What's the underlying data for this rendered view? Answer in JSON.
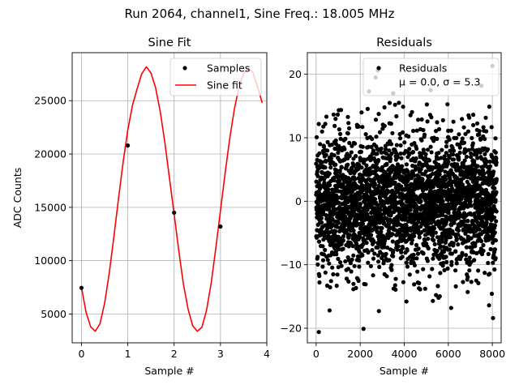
{
  "figure": {
    "suptitle": "Run 2064, channel1, Sine Freq.: 18.005 MHz"
  },
  "chart_data": [
    {
      "type": "line",
      "title": "Sine Fit",
      "xlabel": "Sample #",
      "ylabel": "ADC Counts",
      "xlim": [
        -0.2,
        4.0
      ],
      "ylim": [
        2300,
        29500
      ],
      "xticks": [
        0,
        1,
        2,
        3,
        4
      ],
      "yticks": [
        5000,
        10000,
        15000,
        20000,
        25000
      ],
      "grid": true,
      "legend_position": "top-right",
      "series": [
        {
          "name": "Samples",
          "kind": "scatter",
          "color": "#000000",
          "x": [
            0,
            1,
            2,
            3
          ],
          "y": [
            7450,
            20800,
            14500,
            13200
          ]
        },
        {
          "name": "Sine fit",
          "kind": "line",
          "color": "#ff0000",
          "x": [
            0.0,
            0.1,
            0.2,
            0.3,
            0.4,
            0.5,
            0.6,
            0.7,
            0.8,
            0.9,
            1.0,
            1.1,
            1.2,
            1.3,
            1.4,
            1.5,
            1.6,
            1.7,
            1.8,
            1.9,
            2.0,
            2.1,
            2.2,
            2.3,
            2.4,
            2.5,
            2.6,
            2.7,
            2.8,
            2.9,
            3.0,
            3.1,
            3.2,
            3.3,
            3.4,
            3.5,
            3.6,
            3.7,
            3.8,
            3.9
          ],
          "y": [
            7512,
            5152,
            3796,
            3393,
            4092,
            6006,
            8836,
            12245,
            15830,
            19251,
            22245,
            24543,
            26089,
            27503,
            28177,
            27600,
            26215,
            23985,
            21082,
            17716,
            14400,
            10950,
            7809,
            5483,
            3904,
            3385,
            3760,
            5356,
            7912,
            11193,
            14700,
            18199,
            21448,
            24212,
            26273,
            27532,
            28047,
            27648,
            26310,
            24800
          ]
        }
      ]
    },
    {
      "type": "scatter",
      "title": "Residuals",
      "xlabel": "Sample #",
      "ylabel": "",
      "xlim": [
        -400,
        8400
      ],
      "ylim": [
        -22.3,
        23.4
      ],
      "xticks": [
        0,
        2000,
        4000,
        6000,
        8000
      ],
      "yticks": [
        -20,
        -10,
        0,
        10,
        20
      ],
      "grid": true,
      "legend_position": "top-right",
      "series": [
        {
          "name": "Residuals",
          "color": "#000000",
          "n_points": 8192,
          "mean": 0.0,
          "std": 5.3,
          "outliers": [
            {
              "x": 120,
              "y": -20.6
            },
            {
              "x": 2150,
              "y": -20.1
            },
            {
              "x": 8000,
              "y": 21.3
            },
            {
              "x": 8030,
              "y": -18.4
            },
            {
              "x": 2800,
              "y": 20.6
            },
            {
              "x": 2700,
              "y": 19.5
            },
            {
              "x": 2400,
              "y": 17.3
            },
            {
              "x": 5200,
              "y": 17.5
            },
            {
              "x": 7500,
              "y": 18.2
            },
            {
              "x": 3500,
              "y": 17.0
            },
            {
              "x": 610,
              "y": -17.2
            },
            {
              "x": 2850,
              "y": -17.3
            },
            {
              "x": 6130,
              "y": -16.8
            },
            {
              "x": 7850,
              "y": -16.4
            },
            {
              "x": 4100,
              "y": -15.8
            },
            {
              "x": 5300,
              "y": -15.7
            }
          ]
        }
      ],
      "legend_text": {
        "label": "Residuals",
        "stats": "μ = 0.0, σ = 5.3"
      }
    }
  ]
}
